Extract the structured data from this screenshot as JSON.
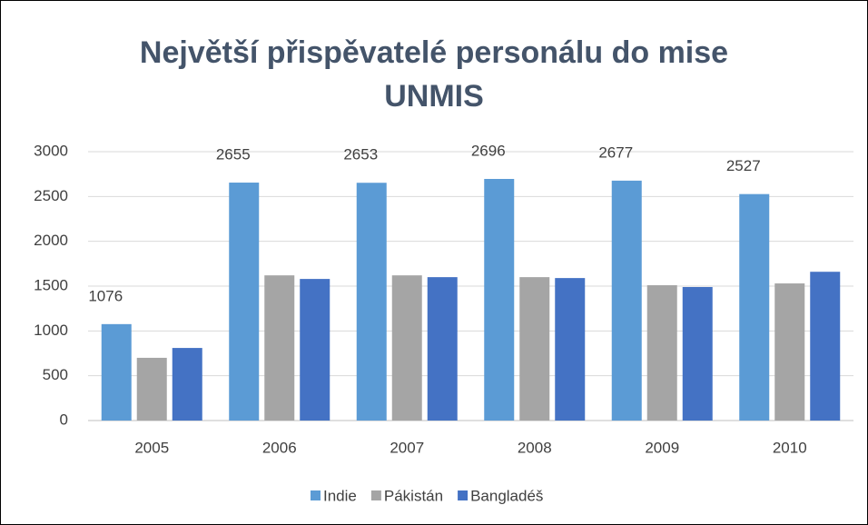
{
  "chart_data": {
    "type": "bar",
    "title": "Největší přispěvatelé personálu do mise UNMIS",
    "categories": [
      "2005",
      "2006",
      "2007",
      "2008",
      "2009",
      "2010"
    ],
    "series": [
      {
        "name": "Indie",
        "color": "#5b9bd5",
        "values": [
          1076,
          2655,
          2653,
          2696,
          2677,
          2527
        ],
        "data_labels": true
      },
      {
        "name": "Pákistán",
        "color": "#a5a5a5",
        "values": [
          700,
          1620,
          1620,
          1600,
          1510,
          1530
        ]
      },
      {
        "name": "Bangladéš",
        "color": "#4472c4",
        "values": [
          810,
          1580,
          1600,
          1590,
          1490,
          1660
        ]
      }
    ],
    "ylim": [
      0,
      3000
    ],
    "yticks": [
      0,
      500,
      1000,
      1500,
      2000,
      2500,
      3000
    ],
    "grid": true,
    "legend": "bottom"
  }
}
